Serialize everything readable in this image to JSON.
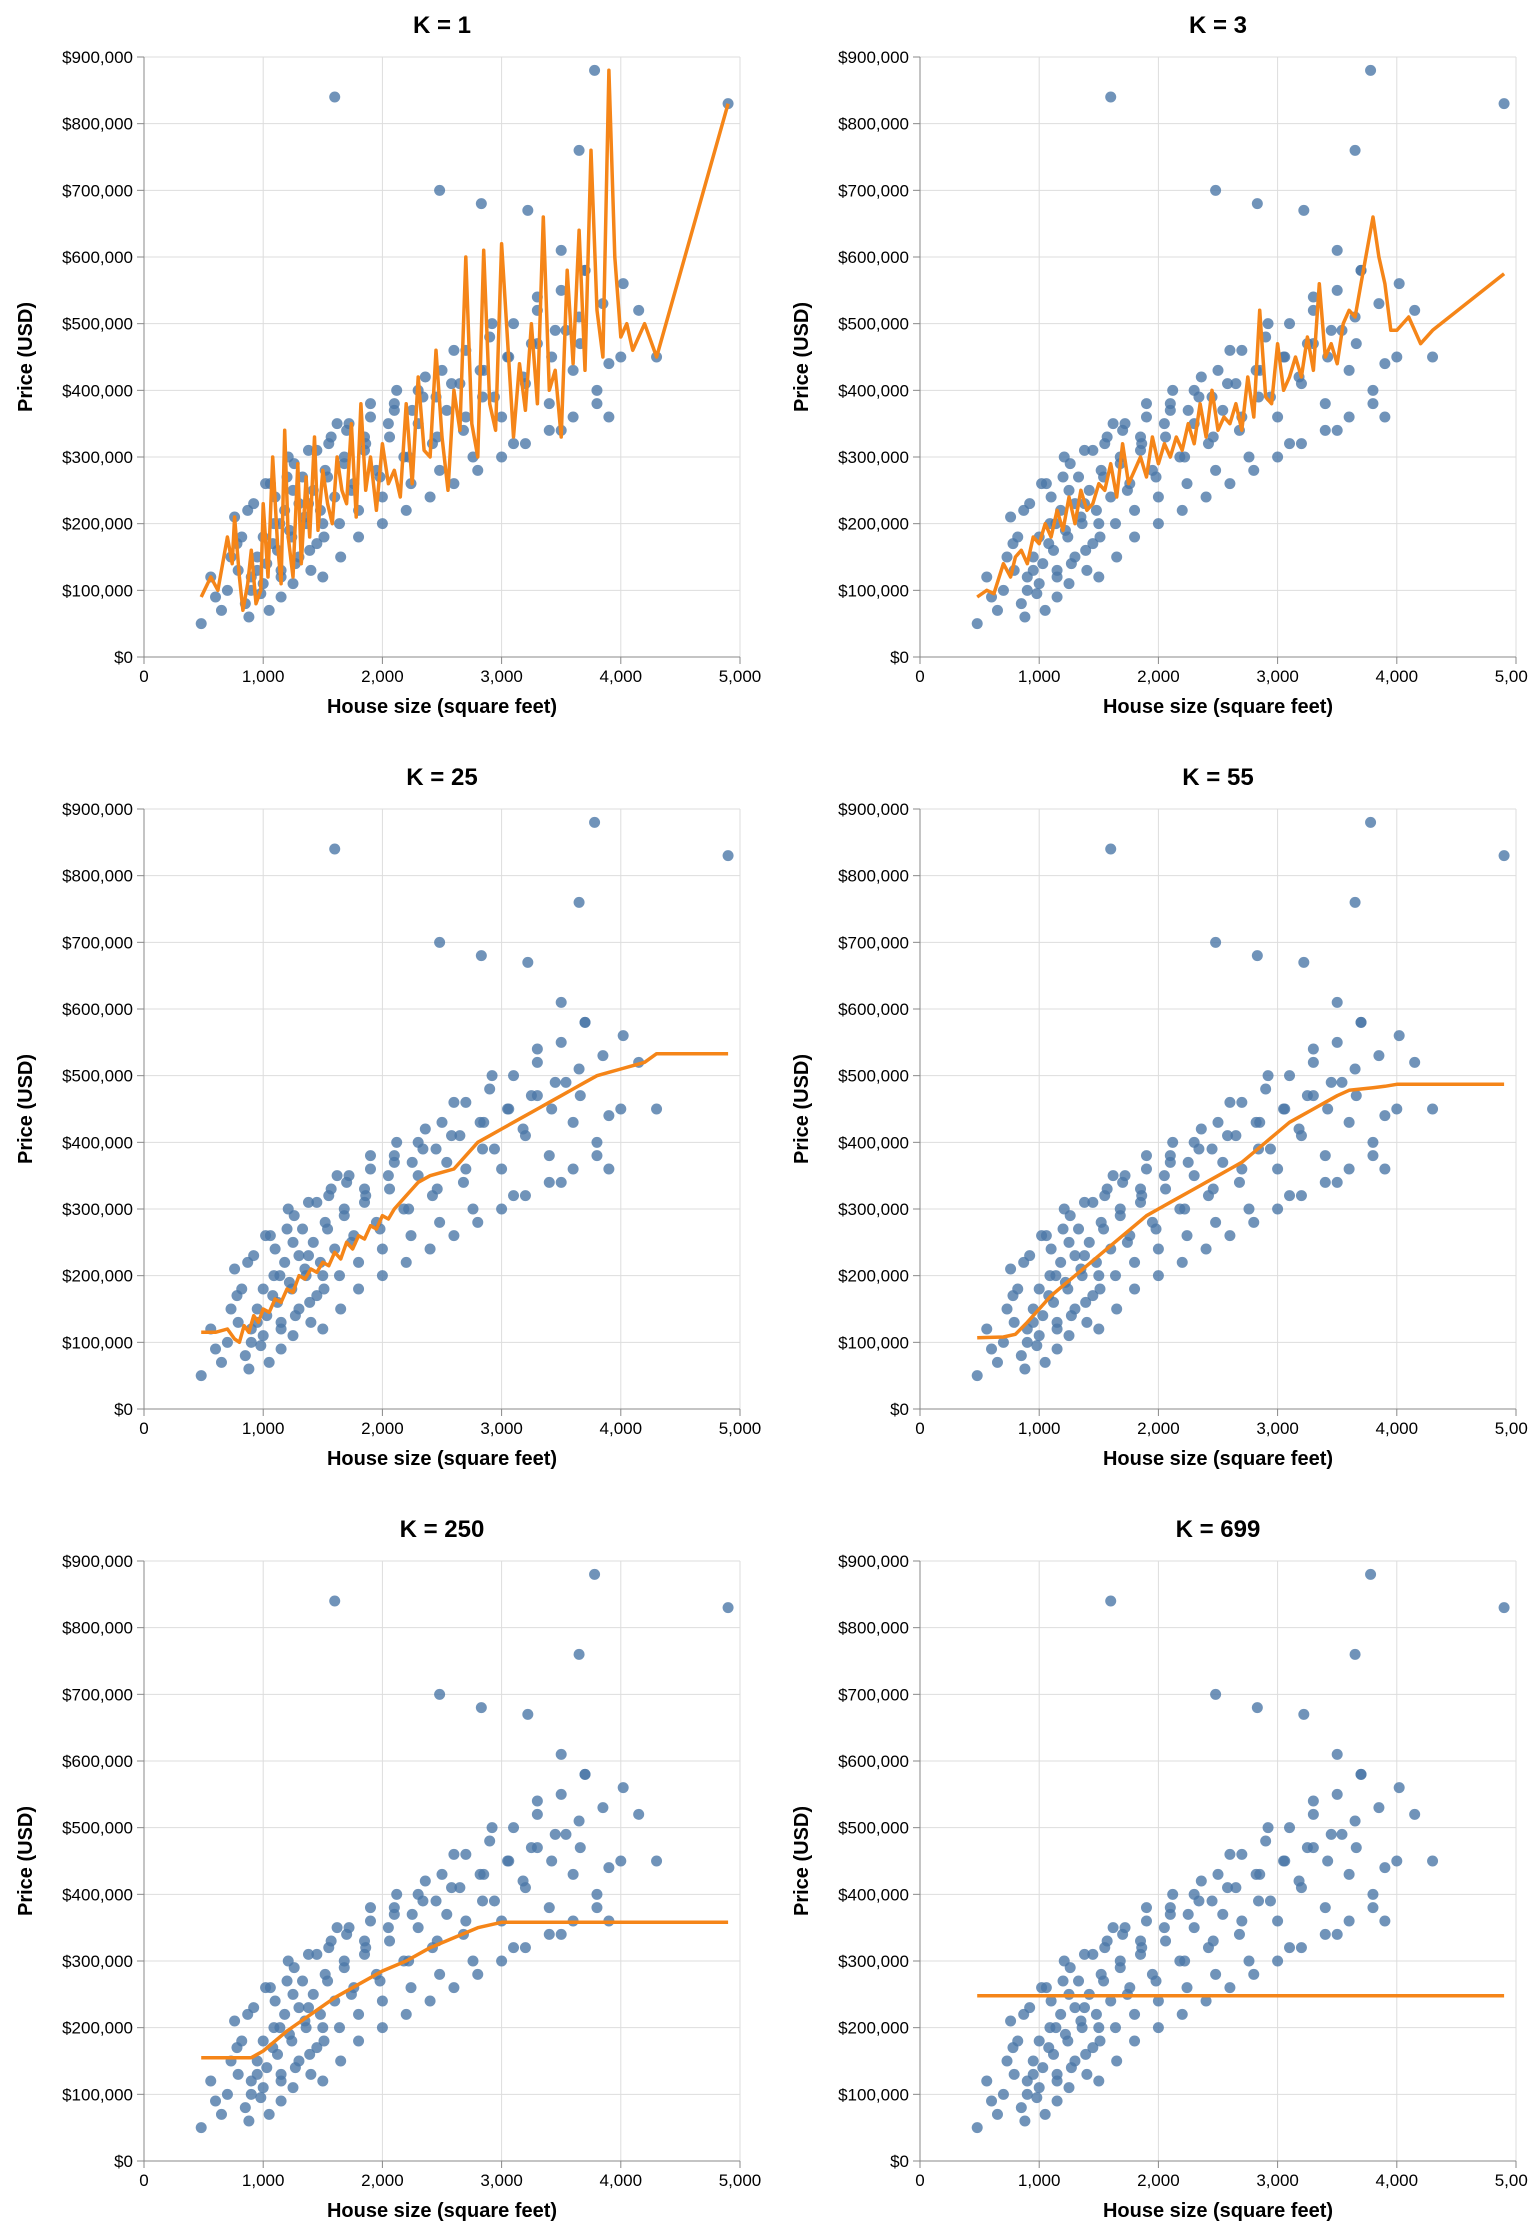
{
  "chart_data": [
    {
      "type": "scatter",
      "title": "K = 1",
      "xlabel": "House size (square feet)",
      "ylabel": "Price (USD)",
      "xlim": [
        0,
        5000
      ],
      "ylim": [
        0,
        900000
      ],
      "xticks": [
        "0",
        "1,000",
        "2,000",
        "3,000",
        "4,000",
        "5,000"
      ],
      "yticks": [
        "$0",
        "$100,000",
        "$200,000",
        "$300,000",
        "$400,000",
        "$500,000",
        "$600,000",
        "$700,000",
        "$800,000",
        "$900,000"
      ],
      "grid": true,
      "prediction_line": {
        "x": [
          480,
          560,
          620,
          700,
          740,
          760,
          800,
          830,
          870,
          900,
          940,
          980,
          1000,
          1040,
          1080,
          1120,
          1150,
          1180,
          1210,
          1250,
          1290,
          1320,
          1360,
          1390,
          1430,
          1460,
          1500,
          1540,
          1580,
          1620,
          1660,
          1700,
          1740,
          1780,
          1820,
          1860,
          1900,
          1950,
          2000,
          2050,
          2100,
          2150,
          2200,
          2250,
          2300,
          2350,
          2400,
          2450,
          2500,
          2550,
          2600,
          2650,
          2700,
          2750,
          2800,
          2850,
          2900,
          2950,
          3000,
          3100,
          3150,
          3200,
          3250,
          3300,
          3350,
          3400,
          3450,
          3500,
          3550,
          3600,
          3650,
          3700,
          3750,
          3800,
          3850,
          3900,
          3950,
          4000,
          4050,
          4100,
          4200,
          4300,
          4900
        ],
        "y": [
          90000,
          120000,
          100000,
          180000,
          140000,
          210000,
          120000,
          70000,
          110000,
          160000,
          80000,
          100000,
          230000,
          120000,
          300000,
          170000,
          110000,
          340000,
          180000,
          120000,
          290000,
          140000,
          270000,
          180000,
          330000,
          190000,
          280000,
          230000,
          200000,
          300000,
          250000,
          230000,
          350000,
          210000,
          380000,
          250000,
          300000,
          220000,
          320000,
          260000,
          280000,
          240000,
          380000,
          260000,
          420000,
          310000,
          300000,
          460000,
          330000,
          250000,
          400000,
          340000,
          600000,
          350000,
          300000,
          610000,
          380000,
          340000,
          620000,
          330000,
          440000,
          370000,
          500000,
          380000,
          660000,
          400000,
          430000,
          330000,
          580000,
          440000,
          640000,
          430000,
          760000,
          520000,
          450000,
          880000,
          600000,
          480000,
          500000,
          460000,
          500000,
          450000,
          830000
        ]
      },
      "series": [
        {
          "name": "",
          "marker": "circle"
        }
      ]
    },
    {
      "type": "scatter",
      "title": "K = 3",
      "xlabel": "House size (square feet)",
      "ylabel": "Price (USD)",
      "xlim": [
        0,
        5000
      ],
      "ylim": [
        0,
        900000
      ],
      "xticks": [
        "0",
        "1,000",
        "2,000",
        "3,000",
        "4,000",
        "5,000"
      ],
      "yticks": [
        "$0",
        "$100,000",
        "$200,000",
        "$300,000",
        "$400,000",
        "$500,000",
        "$600,000",
        "$700,000",
        "$800,000",
        "$900,000"
      ],
      "grid": true,
      "prediction_line": {
        "x": [
          480,
          560,
          620,
          700,
          760,
          800,
          850,
          900,
          950,
          1000,
          1050,
          1100,
          1150,
          1200,
          1250,
          1300,
          1350,
          1400,
          1450,
          1500,
          1550,
          1600,
          1650,
          1700,
          1750,
          1800,
          1850,
          1900,
          1950,
          2000,
          2050,
          2100,
          2150,
          2200,
          2250,
          2300,
          2350,
          2400,
          2450,
          2500,
          2550,
          2600,
          2650,
          2700,
          2750,
          2800,
          2850,
          2900,
          2950,
          3000,
          3050,
          3100,
          3150,
          3200,
          3250,
          3300,
          3350,
          3400,
          3450,
          3500,
          3550,
          3600,
          3650,
          3700,
          3750,
          3800,
          3850,
          3900,
          3950,
          4000,
          4100,
          4200,
          4300,
          4900
        ],
        "y": [
          90000,
          100000,
          95000,
          140000,
          120000,
          150000,
          160000,
          140000,
          180000,
          170000,
          200000,
          180000,
          220000,
          190000,
          240000,
          200000,
          250000,
          220000,
          230000,
          260000,
          250000,
          290000,
          240000,
          320000,
          260000,
          280000,
          300000,
          270000,
          330000,
          290000,
          320000,
          300000,
          330000,
          310000,
          350000,
          320000,
          380000,
          330000,
          400000,
          340000,
          360000,
          350000,
          380000,
          340000,
          420000,
          360000,
          520000,
          390000,
          380000,
          470000,
          400000,
          420000,
          450000,
          420000,
          480000,
          430000,
          560000,
          450000,
          470000,
          440000,
          500000,
          520000,
          510000,
          560000,
          610000,
          660000,
          600000,
          560000,
          490000,
          490000,
          510000,
          470000,
          490000,
          575000
        ]
      },
      "series": [
        {
          "name": "",
          "marker": "circle"
        }
      ]
    },
    {
      "type": "scatter",
      "title": "K = 25",
      "xlabel": "House size (square feet)",
      "ylabel": "Price (USD)",
      "xlim": [
        0,
        5000
      ],
      "ylim": [
        0,
        900000
      ],
      "xticks": [
        "0",
        "1,000",
        "2,000",
        "3,000",
        "4,000",
        "5,000"
      ],
      "yticks": [
        "$0",
        "$100,000",
        "$200,000",
        "$300,000",
        "$400,000",
        "$500,000",
        "$600,000",
        "$700,000",
        "$800,000",
        "$900,000"
      ],
      "grid": true,
      "prediction_line": {
        "x": [
          480,
          600,
          700,
          760,
          800,
          840,
          880,
          920,
          960,
          1000,
          1050,
          1100,
          1150,
          1200,
          1250,
          1300,
          1350,
          1400,
          1450,
          1500,
          1550,
          1600,
          1650,
          1700,
          1750,
          1800,
          1850,
          1900,
          1950,
          2000,
          2050,
          2100,
          2150,
          2200,
          2250,
          2300,
          2400,
          2500,
          2600,
          2700,
          2800,
          2900,
          3000,
          3100,
          3200,
          3300,
          3400,
          3500,
          3600,
          3700,
          3800,
          3900,
          4000,
          4100,
          4200,
          4300,
          4900
        ],
        "y": [
          115000,
          115000,
          120000,
          105000,
          100000,
          125000,
          115000,
          140000,
          130000,
          150000,
          145000,
          165000,
          160000,
          180000,
          175000,
          200000,
          195000,
          210000,
          205000,
          220000,
          215000,
          235000,
          225000,
          250000,
          240000,
          260000,
          255000,
          275000,
          270000,
          290000,
          285000,
          300000,
          310000,
          320000,
          330000,
          340000,
          350000,
          355000,
          360000,
          380000,
          400000,
          410000,
          420000,
          430000,
          440000,
          450000,
          460000,
          470000,
          480000,
          490000,
          500000,
          505000,
          510000,
          515000,
          520000,
          533000,
          533000
        ]
      },
      "series": [
        {
          "name": "",
          "marker": "circle"
        }
      ]
    },
    {
      "type": "scatter",
      "title": "K = 55",
      "xlabel": "House size (square feet)",
      "ylabel": "Price (USD)",
      "xlim": [
        0,
        5000
      ],
      "ylim": [
        0,
        900000
      ],
      "xticks": [
        "0",
        "1,000",
        "2,000",
        "3,000",
        "4,000",
        "5,000"
      ],
      "yticks": [
        "$0",
        "$100,000",
        "$200,000",
        "$300,000",
        "$400,000",
        "$500,000",
        "$600,000",
        "$700,000",
        "$800,000",
        "$900,000"
      ],
      "grid": true,
      "prediction_line": {
        "x": [
          480,
          700,
          800,
          900,
          1000,
          1100,
          1200,
          1300,
          1400,
          1500,
          1600,
          1700,
          1800,
          1900,
          2000,
          2100,
          2200,
          2300,
          2400,
          2500,
          2600,
          2700,
          2800,
          2900,
          3000,
          3100,
          3200,
          3300,
          3400,
          3500,
          3600,
          3700,
          3800,
          3900,
          4000,
          4900
        ],
        "y": [
          107000,
          108000,
          112000,
          130000,
          150000,
          170000,
          185000,
          200000,
          215000,
          230000,
          245000,
          260000,
          275000,
          290000,
          300000,
          310000,
          320000,
          330000,
          340000,
          350000,
          360000,
          370000,
          385000,
          400000,
          415000,
          430000,
          440000,
          450000,
          460000,
          470000,
          478000,
          480000,
          482000,
          484000,
          487000,
          487000
        ]
      },
      "series": [
        {
          "name": "",
          "marker": "circle"
        }
      ]
    },
    {
      "type": "scatter",
      "title": "K = 250",
      "xlabel": "House size (square feet)",
      "ylabel": "Price (USD)",
      "xlim": [
        0,
        5000
      ],
      "ylim": [
        0,
        900000
      ],
      "xticks": [
        "0",
        "1,000",
        "2,000",
        "3,000",
        "4,000",
        "5,000"
      ],
      "yticks": [
        "$0",
        "$100,000",
        "$200,000",
        "$300,000",
        "$400,000",
        "$500,000",
        "$600,000",
        "$700,000",
        "$800,000",
        "$900,000"
      ],
      "grid": true,
      "prediction_line": {
        "x": [
          480,
          900,
          1000,
          1200,
          1400,
          1600,
          1800,
          2000,
          2200,
          2400,
          2600,
          2800,
          3000,
          3200,
          4900
        ],
        "y": [
          155000,
          155000,
          165000,
          195000,
          220000,
          245000,
          265000,
          285000,
          300000,
          320000,
          335000,
          350000,
          358000,
          358000,
          358000
        ]
      },
      "series": [
        {
          "name": "",
          "marker": "circle"
        }
      ]
    },
    {
      "type": "scatter",
      "title": "K = 699",
      "xlabel": "House size (square feet)",
      "ylabel": "Price (USD)",
      "xlim": [
        0,
        5000
      ],
      "ylim": [
        0,
        900000
      ],
      "xticks": [
        "0",
        "1,000",
        "2,000",
        "3,000",
        "4,000",
        "5,000"
      ],
      "yticks": [
        "$0",
        "$100,000",
        "$200,000",
        "$300,000",
        "$400,000",
        "$500,000",
        "$600,000",
        "$700,000",
        "$800,000",
        "$900,000"
      ],
      "grid": true,
      "prediction_line": {
        "x": [
          480,
          4900
        ],
        "y": [
          248000,
          248000
        ]
      },
      "series": [
        {
          "name": "",
          "marker": "circle"
        }
      ]
    }
  ],
  "shared_points": {
    "x": [
      480,
      560,
      600,
      650,
      700,
      730,
      760,
      790,
      820,
      850,
      880,
      900,
      920,
      950,
      980,
      1000,
      1030,
      1060,
      1090,
      1120,
      1150,
      1180,
      1210,
      1240,
      1270,
      1300,
      1330,
      1360,
      1390,
      1420,
      1450,
      1480,
      1510,
      1540,
      1570,
      1600,
      1640,
      1680,
      1720,
      1760,
      1800,
      1850,
      1900,
      1950,
      2000,
      2060,
      2120,
      2180,
      2240,
      2300,
      2360,
      2420,
      2480,
      2540,
      2600,
      2680,
      2760,
      2840,
      2920,
      3000,
      3100,
      3200,
      3300,
      3400,
      3500,
      3600,
      3700,
      3800,
      3900,
      4000,
      4150,
      4300,
      4900,
      1600,
      3780,
      3650,
      2480,
      2830,
      3500,
      3220,
      4020,
      870,
      1000,
      1150,
      1300,
      1450,
      1250,
      1100,
      1350,
      1200,
      1550,
      1700,
      1900,
      2100,
      2300,
      2500,
      2700,
      2900,
      3100,
      3300,
      3500,
      3700,
      3900,
      1050,
      1150,
      1250,
      1400,
      1500,
      1650,
      1800,
      2000,
      2200,
      2400,
      2600,
      2800,
      3000,
      3200,
      3400,
      3600,
      3800,
      950,
      1080,
      1220,
      1380,
      1520,
      1680,
      1850,
      2050,
      2250,
      2450,
      2650,
      2850,
      3050,
      3250,
      3450,
      3650,
      3850,
      780,
      900,
      1020,
      1140,
      1260,
      1380,
      1500,
      1620,
      1740,
      1860,
      1980,
      2100,
      2220,
      2340,
      2460,
      2580,
      2700,
      2820,
      2940,
      3060,
      3180,
      3300,
      3420,
      3540,
      3660
    ],
    "y": [
      50000,
      120000,
      90000,
      70000,
      100000,
      150000,
      210000,
      130000,
      180000,
      80000,
      60000,
      120000,
      230000,
      150000,
      95000,
      180000,
      140000,
      260000,
      200000,
      160000,
      120000,
      220000,
      300000,
      180000,
      140000,
      230000,
      270000,
      200000,
      160000,
      250000,
      310000,
      220000,
      180000,
      270000,
      330000,
      240000,
      200000,
      290000,
      350000,
      260000,
      220000,
      310000,
      380000,
      280000,
      240000,
      330000,
      400000,
      300000,
      260000,
      350000,
      420000,
      320000,
      280000,
      370000,
      460000,
      340000,
      300000,
      390000,
      500000,
      360000,
      320000,
      410000,
      540000,
      380000,
      340000,
      430000,
      580000,
      400000,
      360000,
      450000,
      520000,
      450000,
      830000,
      840000,
      880000,
      760000,
      700000,
      680000,
      610000,
      670000,
      560000,
      220000,
      110000,
      130000,
      150000,
      170000,
      250000,
      240000,
      210000,
      270000,
      320000,
      340000,
      360000,
      380000,
      400000,
      430000,
      460000,
      480000,
      500000,
      520000,
      550000,
      580000,
      440000,
      70000,
      90000,
      110000,
      130000,
      120000,
      150000,
      180000,
      200000,
      220000,
      240000,
      260000,
      280000,
      300000,
      320000,
      340000,
      360000,
      380000,
      130000,
      170000,
      190000,
      230000,
      280000,
      300000,
      330000,
      350000,
      370000,
      390000,
      410000,
      430000,
      450000,
      470000,
      490000,
      510000,
      530000,
      170000,
      100000,
      260000,
      200000,
      290000,
      310000,
      200000,
      350000,
      250000,
      320000,
      270000,
      370000,
      300000,
      390000,
      330000,
      410000,
      360000,
      430000,
      390000,
      450000,
      420000,
      470000,
      450000,
      490000,
      470000
    ]
  }
}
